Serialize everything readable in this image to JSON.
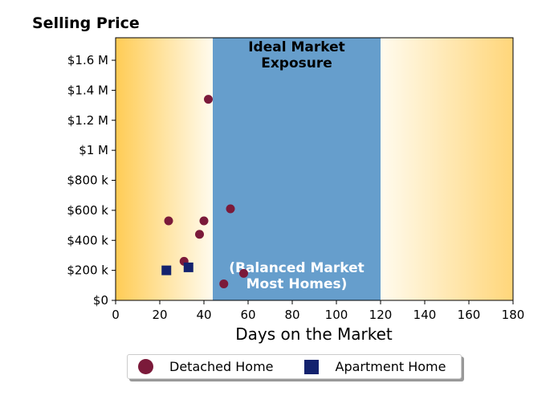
{
  "chart_data": {
    "type": "scatter",
    "title": "Selling Price",
    "xlabel": "Days on the Market",
    "ylabel": "",
    "xlim": [
      0,
      180
    ],
    "ylim": [
      0,
      1750000
    ],
    "x_ticks": [
      0,
      20,
      40,
      60,
      80,
      100,
      120,
      140,
      160,
      180
    ],
    "x_tick_labels": [
      "0",
      "20",
      "40",
      "60",
      "80",
      "100",
      "120",
      "140",
      "160",
      "180"
    ],
    "y_ticks": [
      0,
      200000,
      400000,
      600000,
      800000,
      1000000,
      1200000,
      1400000,
      1600000
    ],
    "y_tick_labels": [
      "$0",
      "$200 k",
      "$400 k",
      "$600 k",
      "$800 k",
      "$1 M",
      "$1.2 M",
      "$1.4 M",
      "$1.6 M"
    ],
    "grid": false,
    "legend_position": "bottom-center",
    "background_gradient_colors": [
      "#ffcc55",
      "#fffbee"
    ],
    "bands": [
      {
        "x_range": [
          44,
          120
        ],
        "color": "#669ecc",
        "label_top": "Ideal Market\nExposure",
        "label_bottom": "(Balanced Market\nMost Homes)"
      }
    ],
    "series": [
      {
        "name": "Detached Home",
        "marker": "circle",
        "color": "#7b1a3a",
        "points": [
          [
            24,
            530000
          ],
          [
            31,
            260000
          ],
          [
            38,
            440000
          ],
          [
            40,
            530000
          ],
          [
            42,
            1340000
          ],
          [
            49,
            110000
          ],
          [
            52,
            610000
          ],
          [
            58,
            180000
          ]
        ]
      },
      {
        "name": "Apartment Home",
        "marker": "square",
        "color": "#13226e",
        "points": [
          [
            23,
            200000
          ],
          [
            33,
            220000
          ]
        ]
      }
    ]
  }
}
